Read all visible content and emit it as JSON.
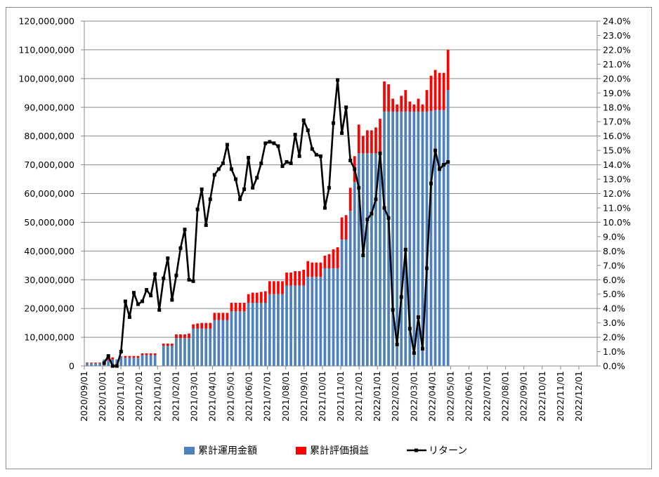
{
  "chart_data": {
    "type": "bar+line",
    "title": "",
    "colors": {
      "invested": "#4f81bd",
      "gain": "#ff0000",
      "return": "#000000",
      "grid": "#898989"
    },
    "x_month_labels": [
      "2020/09/01",
      "2020/10/01",
      "2020/11/01",
      "2020/12/01",
      "2021/01/01",
      "2021/02/01",
      "2021/03/01",
      "2021/04/01",
      "2021/05/01",
      "2021/06/01",
      "2021/07/01",
      "2021/08/01",
      "2021/09/01",
      "2021/10/01",
      "2021/11/01",
      "2021/12/01",
      "2022/01/01",
      "2022/02/01",
      "2022/03/01",
      "2022/04/01",
      "2022/05/01",
      "2022/06/01",
      "2022/07/01",
      "2022/08/01",
      "2022/09/01",
      "2022/10/01",
      "2022/11/01",
      "2022/12/01"
    ],
    "x_range": [
      "2020/09/01",
      "2022/12/31"
    ],
    "x_interval": "weekly",
    "y_left": {
      "range": [
        0,
        120000000
      ],
      "tick_labels": [
        "0",
        "10,000,000",
        "20,000,000",
        "30,000,000",
        "40,000,000",
        "50,000,000",
        "60,000,000",
        "70,000,000",
        "80,000,000",
        "90,000,000",
        "100,000,000",
        "110,000,000",
        "120,000,000"
      ]
    },
    "y_right": {
      "range": [
        0,
        24
      ],
      "tick_labels": [
        "0.0%",
        "1.0%",
        "2.0%",
        "3.0%",
        "4.0%",
        "5.0%",
        "6.0%",
        "7.0%",
        "8.0%",
        "9.0%",
        "10.0%",
        "11.0%",
        "12.0%",
        "13.0%",
        "14.0%",
        "15.0%",
        "16.0%",
        "17.0%",
        "18.0%",
        "19.0%",
        "20.0%",
        "21.0%",
        "22.0%",
        "23.0%",
        "24.0%"
      ]
    },
    "grid": "horizontal-left-axis",
    "legend_position": "bottom",
    "series": [
      {
        "name": "累計運用金額",
        "kind": "bar-stacked",
        "axis": "left",
        "values": [
          1000000,
          1000000,
          1000000,
          1000000,
          2300000,
          2000000,
          2300000,
          2300000,
          3200000,
          2900000,
          2900000,
          2900000,
          2900000,
          3800000,
          3800000,
          3800000,
          3800000,
          0,
          7000000,
          7000000,
          7000000,
          9700000,
          9700000,
          9700000,
          9700000,
          13000000,
          13000000,
          13000000,
          13000000,
          13000000,
          16000000,
          16000000,
          16000000,
          16000000,
          19000000,
          19000000,
          19000000,
          19000000,
          22000000,
          22000000,
          22000000,
          22000000,
          22000000,
          25000000,
          25000000,
          25000000,
          25000000,
          28000000,
          28000000,
          28000000,
          28000000,
          28000000,
          31000000,
          31000000,
          31000000,
          31000000,
          34000000,
          34000000,
          34000000,
          34000000,
          44000000,
          44000000,
          54000000,
          64000000,
          74000000,
          74000000,
          74000000,
          74000000,
          74000000,
          74000000,
          88500000,
          88500000,
          88500000,
          88500000,
          88500000,
          88500000,
          88500000,
          88500000,
          88500000,
          88500000,
          88500000,
          88700000,
          89000000,
          89000000,
          89000000,
          96000000
        ]
      },
      {
        "name": "累計評価損益",
        "kind": "bar-stacked",
        "axis": "left",
        "values": [
          200000,
          200000,
          200000,
          200000,
          0,
          1000000,
          700000,
          0,
          200000,
          600000,
          600000,
          600000,
          600000,
          600000,
          600000,
          600000,
          600000,
          0,
          800000,
          800000,
          800000,
          1300000,
          1300000,
          1300000,
          1600000,
          1500000,
          1800000,
          2000000,
          2000000,
          2000000,
          2500000,
          2500000,
          2500000,
          2500000,
          3000000,
          3000000,
          3000000,
          3000000,
          3000000,
          3500000,
          3500000,
          3800000,
          4000000,
          4500000,
          4500000,
          4500000,
          4500000,
          4500000,
          4500000,
          5000000,
          5000000,
          5500000,
          5500000,
          5000000,
          5000000,
          5000000,
          4400000,
          4900000,
          6600000,
          7300000,
          7700000,
          8500000,
          8000000,
          9000000,
          10000000,
          6000000,
          8000000,
          8000000,
          9000000,
          12000000,
          10500000,
          9500000,
          4500000,
          2500000,
          5500000,
          7500000,
          3500000,
          2500000,
          4500000,
          2500000,
          7500000,
          12300000,
          14000000,
          13000000,
          13000000,
          14000000
        ]
      },
      {
        "name": "リターン",
        "kind": "line",
        "axis": "right",
        "unit": "%",
        "values": [
          null,
          null,
          null,
          null,
          0.2,
          0.7,
          0.0,
          0.0,
          1.0,
          4.5,
          3.4,
          5.1,
          4.3,
          4.5,
          5.3,
          4.9,
          6.4,
          3.9,
          6.1,
          7.5,
          4.6,
          6.3,
          8.2,
          9.5,
          6.0,
          5.9,
          10.9,
          12.3,
          9.8,
          11.6,
          13.3,
          13.7,
          14.1,
          15.4,
          13.7,
          13.0,
          11.6,
          12.3,
          14.5,
          12.4,
          13.1,
          14.1,
          15.5,
          15.6,
          15.5,
          15.3,
          13.9,
          14.2,
          14.1,
          16.1,
          14.6,
          17.1,
          16.4,
          15.1,
          14.7,
          14.6,
          11.0,
          12.4,
          16.9,
          19.9,
          16.2,
          18.0,
          14.3,
          13.7,
          12.4,
          7.7,
          10.2,
          10.6,
          11.6,
          14.8,
          11.0,
          10.3,
          3.9,
          1.5,
          4.8,
          8.1,
          2.6,
          0.9,
          3.4,
          1.2,
          6.8,
          12.7,
          15.0,
          13.7,
          14.0,
          14.2
        ]
      }
    ]
  }
}
